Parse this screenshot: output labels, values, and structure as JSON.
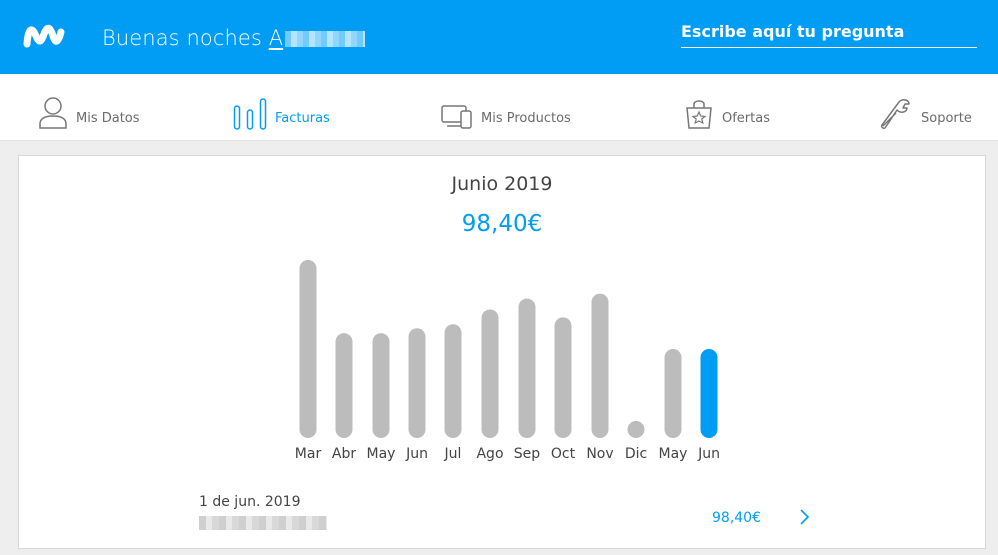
{
  "header": {
    "greeting": "Buenas noches",
    "user_initial": "A",
    "search_label": "Escribe aquí tu pregunta",
    "brand_color": "#019df4"
  },
  "nav": {
    "items": [
      {
        "label": "Mis Datos",
        "icon": "user-icon"
      },
      {
        "label": "Facturas",
        "icon": "bar-chart-icon",
        "active": true
      },
      {
        "label": "Mis Productos",
        "icon": "devices-icon"
      },
      {
        "label": "Ofertas",
        "icon": "shopping-bag-star-icon"
      },
      {
        "label": "Soporte",
        "icon": "wrench-icon"
      }
    ]
  },
  "invoice_summary": {
    "period": "Junio 2019",
    "amount": "98,40€"
  },
  "chart_data": {
    "type": "bar",
    "categories": [
      "Mar",
      "Abr",
      "May",
      "Jun",
      "Jul",
      "Ago",
      "Sep",
      "Oct",
      "Nov",
      "Dic",
      "May",
      "Jun"
    ],
    "values": [
      180,
      106,
      106,
      111,
      115,
      130,
      141,
      122,
      146,
      14,
      90,
      90
    ],
    "highlighted_index": 11,
    "bar_color": "#bcbcbc",
    "highlight_color": "#019df4"
  },
  "bill": {
    "date": "1 de jun. 2019",
    "amount": "98,40€",
    "chevron": "chevron-right-icon"
  }
}
